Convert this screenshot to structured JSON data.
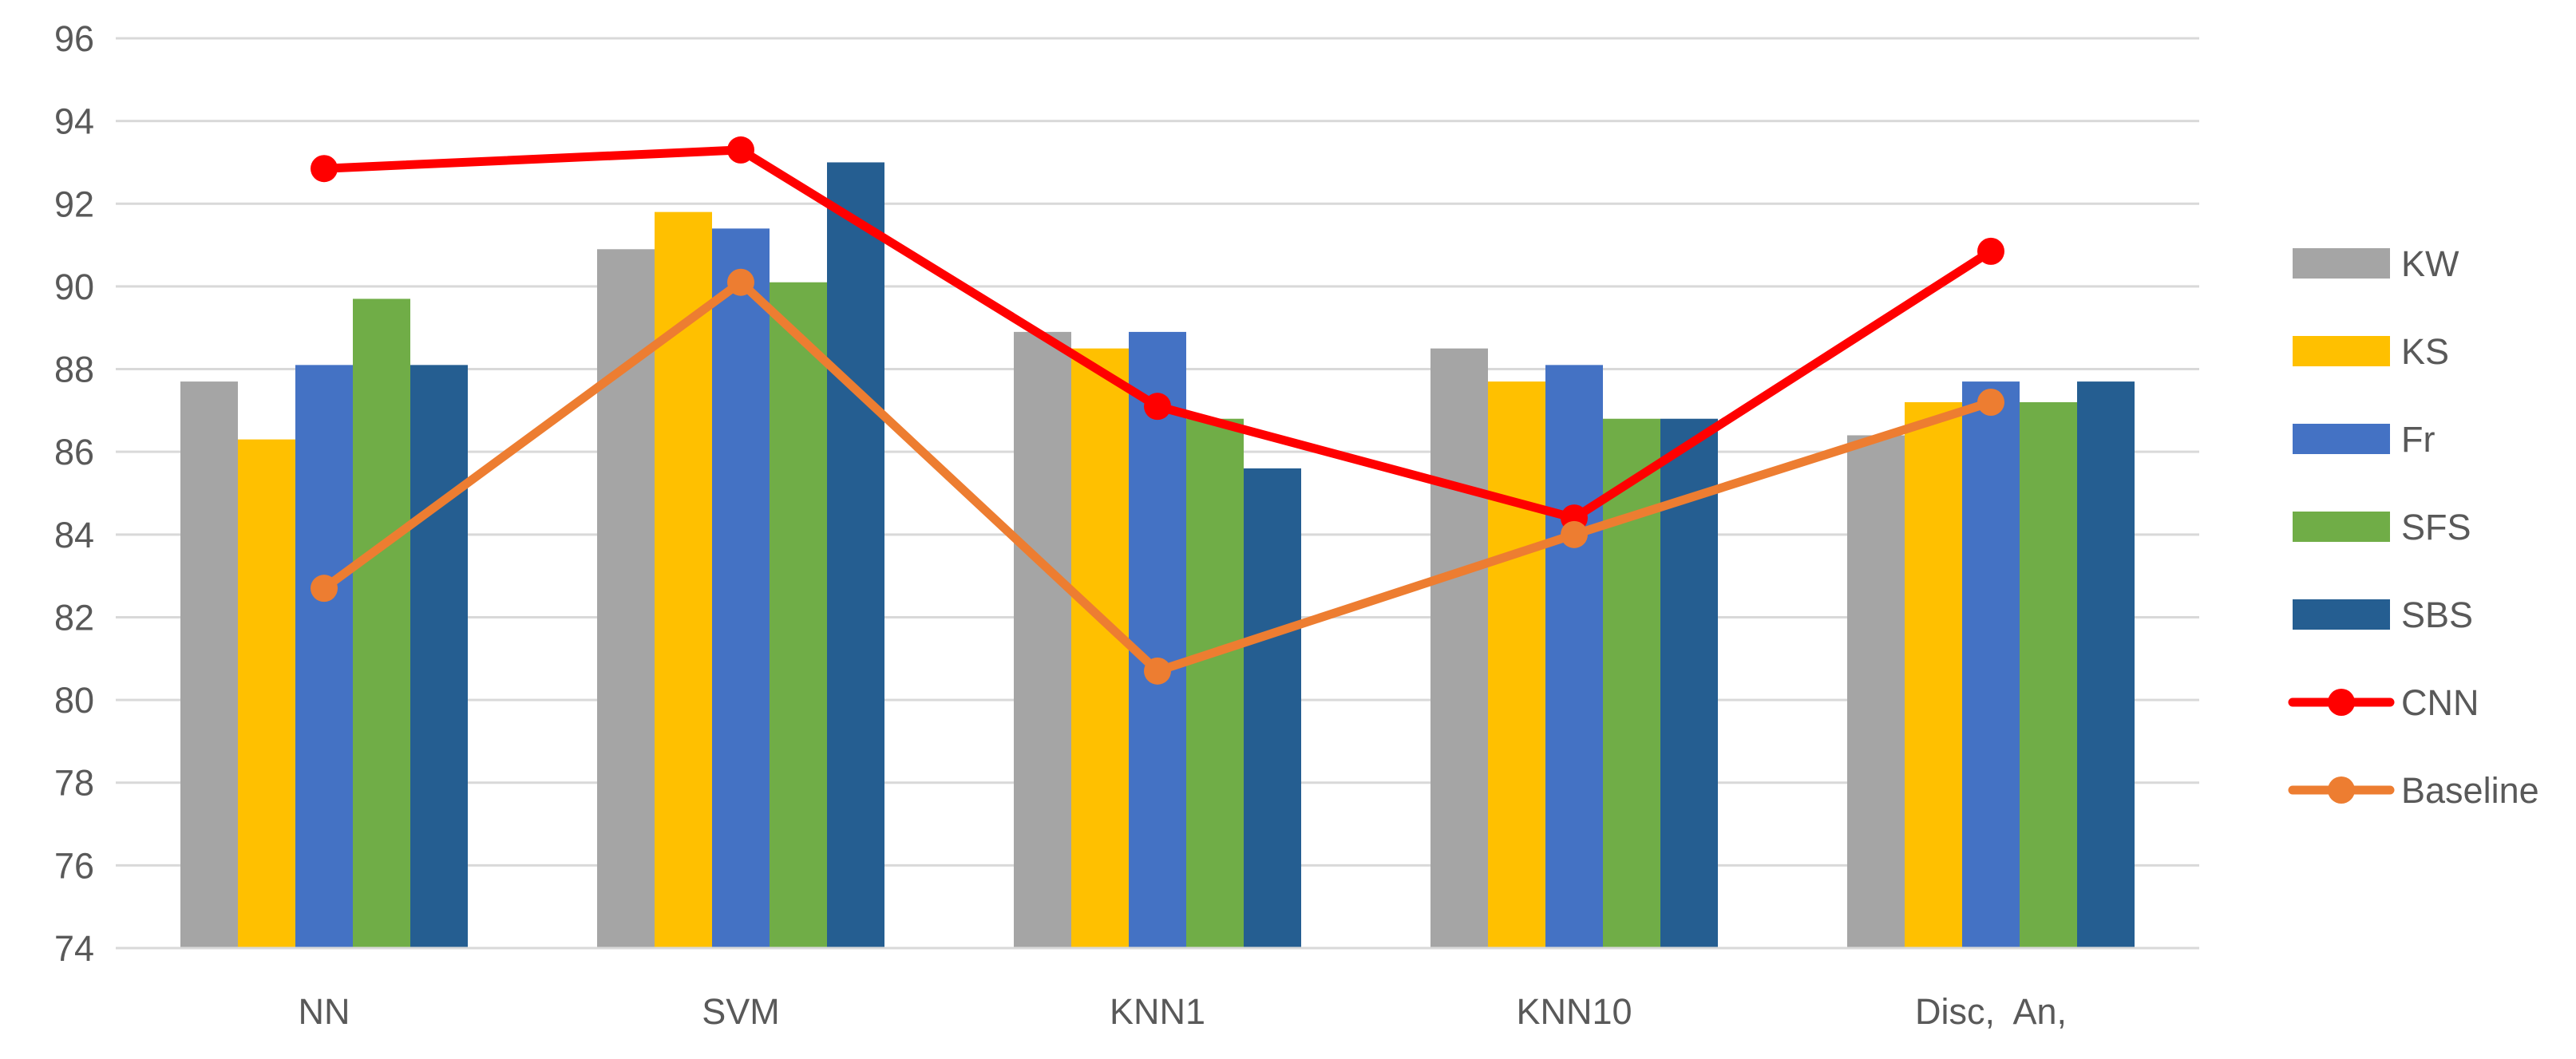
{
  "chart_data": {
    "type": "bar",
    "categories": [
      "NN",
      "SVM",
      "KNN1",
      "KNN10",
      "Disc,  An,"
    ],
    "ylim": [
      74,
      96
    ],
    "yticks": [
      74,
      76,
      78,
      80,
      82,
      84,
      86,
      88,
      90,
      92,
      94,
      96
    ],
    "grid": true,
    "legend_position": "right",
    "series": [
      {
        "name": "KW",
        "kind": "bar",
        "color": "#A5A5A5",
        "values": [
          87.7,
          90.9,
          88.9,
          88.5,
          86.4
        ]
      },
      {
        "name": "KS",
        "kind": "bar",
        "color": "#FFC000",
        "values": [
          86.3,
          91.8,
          88.5,
          87.7,
          87.2
        ]
      },
      {
        "name": "Fr",
        "kind": "bar",
        "color": "#4472C4",
        "values": [
          88.1,
          91.4,
          88.9,
          88.1,
          87.7
        ]
      },
      {
        "name": "SFS",
        "kind": "bar",
        "color": "#70AD47",
        "values": [
          89.7,
          90.1,
          86.8,
          86.8,
          87.2
        ]
      },
      {
        "name": "SBS",
        "kind": "bar",
        "color": "#255E91",
        "values": [
          88.1,
          93.0,
          85.6,
          86.8,
          87.7
        ]
      },
      {
        "name": "CNN",
        "kind": "line",
        "color": "#FF0000",
        "values": [
          92.85,
          93.3,
          87.1,
          84.4,
          90.85
        ]
      },
      {
        "name": "Baseline",
        "kind": "line",
        "color": "#ED7D31",
        "values": [
          82.7,
          90.1,
          80.7,
          84.0,
          87.2
        ]
      }
    ]
  }
}
